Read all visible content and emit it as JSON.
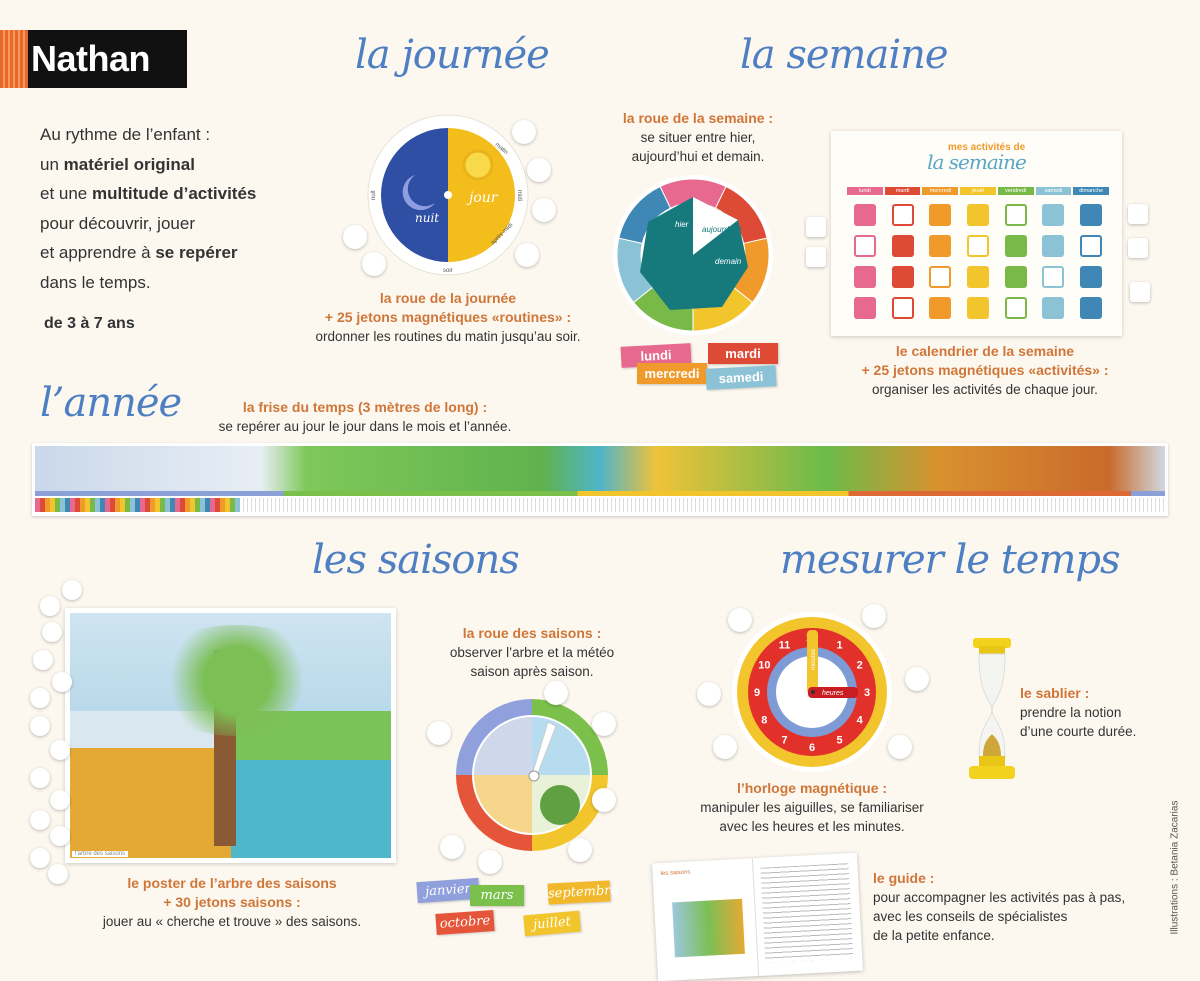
{
  "brand": {
    "logo": "Nathan",
    "colors": {
      "logo_bg": "#111111",
      "logo_accent": "#e8672a"
    }
  },
  "colors": {
    "title_blue": "#4f7fc3",
    "label_orange": "#cf7638",
    "background": "#fcf8f0"
  },
  "intro": {
    "lines": [
      {
        "pre": "Au rythme de l’enfant :",
        "bold": "",
        "post": ""
      },
      {
        "pre": "un ",
        "bold": "matériel original",
        "post": ""
      },
      {
        "pre": "et une ",
        "bold": "multitude d’activités",
        "post": ""
      },
      {
        "pre": "pour découvrir, jouer",
        "bold": "",
        "post": ""
      },
      {
        "pre": "et apprendre à ",
        "bold": "se repérer",
        "post": ""
      },
      {
        "pre": "dans le temps.",
        "bold": "",
        "post": ""
      }
    ],
    "age": "de 3 à 7 ans"
  },
  "journee": {
    "title": "la journée",
    "wheel": {
      "night": "nuit",
      "day": "jour",
      "labels": [
        "matin",
        "midi",
        "après-midi",
        "soir",
        "nuit"
      ]
    },
    "caption": {
      "title": "la roue de la journée",
      "subtitle": "+ 25 jetons magnétiques «routines» :",
      "desc": "ordonner les routines du matin jusqu’au soir."
    }
  },
  "semaine": {
    "title": "la semaine",
    "wheel_caption": {
      "title": "la roue de la semaine :",
      "desc1": "se situer entre hier,",
      "desc2": "aujourd’hui et demain."
    },
    "wheel": {
      "days": [
        "lundi",
        "mardi",
        "mercredi",
        "jeudi",
        "vendredi",
        "samedi",
        "dimanche"
      ],
      "pointers": [
        "hier",
        "aujourd’hui",
        "demain"
      ]
    },
    "tags": [
      "lundi",
      "mardi",
      "mercredi",
      "samedi"
    ],
    "calendar": {
      "title_small": "mes activités de",
      "title_big": "la semaine",
      "days": [
        "lundi",
        "mardi",
        "mercredi",
        "jeudi",
        "vendredi",
        "samedi",
        "dimanche"
      ],
      "day_colors": [
        "#e8698f",
        "#dd4a35",
        "#ef9a2a",
        "#f2c52c",
        "#79b947",
        "#8cc2d6",
        "#3f87b4"
      ]
    },
    "calendar_caption": {
      "title": "le calendrier de la semaine",
      "subtitle": "+ 25 jetons magnétiques «activités» :",
      "desc": "organiser les activités de chaque jour."
    }
  },
  "annee": {
    "title": "l’année",
    "caption": {
      "title": "la frise du temps (3 mètres de long) :",
      "desc": "se repérer au jour le jour dans le mois et l’année."
    }
  },
  "saisons": {
    "title": "les saisons",
    "poster_label": "l’arbre des saisons",
    "poster_caption": {
      "title": "le poster de l’arbre des saisons",
      "subtitle": "+ 30 jetons saisons :",
      "desc": "jouer au « cherche et trouve » des saisons."
    },
    "wheel_caption": {
      "title": "la roue des saisons :",
      "desc1": "observer l’arbre et la météo",
      "desc2": "saison après saison."
    },
    "months": [
      "janvier",
      "mars",
      "septembre",
      "octobre",
      "juillet"
    ]
  },
  "temps": {
    "title": "mesurer le temps",
    "clock": {
      "hours": [
        "12",
        "1",
        "2",
        "3",
        "4",
        "5",
        "6",
        "7",
        "8",
        "9",
        "10",
        "11"
      ],
      "minute_hand": "minutes",
      "hour_hand": "heures"
    },
    "clock_caption": {
      "title": "l’horloge magnétique :",
      "desc1": "manipuler les aiguilles, se familiariser",
      "desc2": "avec les heures et les minutes."
    },
    "sablier": {
      "title": "le sablier :",
      "desc1": "prendre la notion",
      "desc2": "d’une courte durée."
    },
    "guide": {
      "title": "le guide :",
      "desc1": "pour accompagner les activités pas à pas,",
      "desc2": "avec les conseils de spécialistes",
      "desc3": "de la petite enfance.",
      "book_heading": "les saisons"
    }
  },
  "credit": "Illustrations : Betania Zacarias"
}
